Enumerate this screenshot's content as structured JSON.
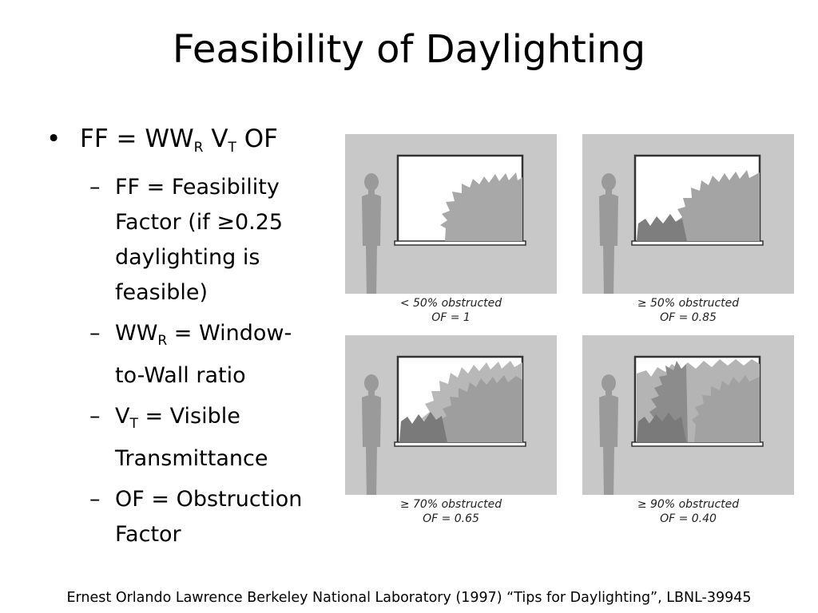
{
  "title": "Feasibility of Daylighting",
  "formula": {
    "ff": "FF = WW",
    "ww_sub": "R",
    "v": " V",
    "v_sub": "T",
    "of": " OF"
  },
  "definitions": [
    {
      "id": "ff",
      "line1": "FF = Feasibility",
      "line2": "Factor (if ≥0.25",
      "line3": "daylighting is",
      "line4": "feasible)"
    },
    {
      "id": "wwr",
      "prefix": "WW",
      "sub": "R",
      "suffix": " = Window-",
      "line2": "to-Wall ratio"
    },
    {
      "id": "vt",
      "prefix": "V",
      "sub": "T",
      "suffix": " = Visible",
      "line2": "Transmittance"
    },
    {
      "id": "of",
      "line1": "OF = Obstruction",
      "line2": "Factor"
    }
  ],
  "panels": [
    {
      "obstruction": "< 50% obstructed",
      "of_value": "OF = 1"
    },
    {
      "obstruction": "≥ 50% obstructed",
      "of_value": "OF = 0.85"
    },
    {
      "obstruction": "≥ 70% obstructed",
      "of_value": "OF = 0.65"
    },
    {
      "obstruction": "≥ 90% obstructed",
      "of_value": "OF = 0.40"
    }
  ],
  "colors": {
    "panel_bg": "#c8c8c8",
    "figure": "#9a9a9a",
    "tree_light": "#b4b4b4",
    "tree_mid": "#9e9e9e",
    "tree_dark": "#7a7a7a"
  },
  "citation": "Ernest Orlando Lawrence Berkeley National Laboratory (1997) “Tips for Daylighting”, LBNL-39945"
}
